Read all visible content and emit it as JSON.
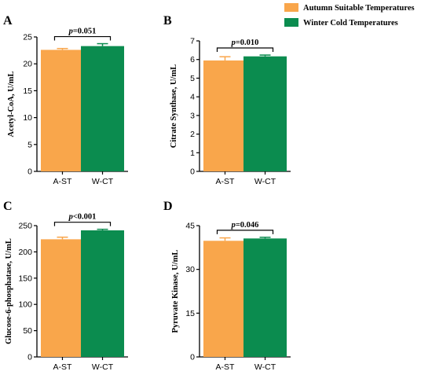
{
  "legend": {
    "items": [
      {
        "label": "Autumn Suitable Temperatures",
        "color": "#F9A64B"
      },
      {
        "label": "Winter Cold Temperatures",
        "color": "#0B8C4F"
      }
    ]
  },
  "chart_data": [
    {
      "panel": "A",
      "type": "bar",
      "categories": [
        "A-ST",
        "W-CT"
      ],
      "values": [
        22.6,
        23.3
      ],
      "errors": [
        0.25,
        0.45
      ],
      "ylabel": "Acetyl-CoA, U/mL",
      "ylim": [
        0,
        25
      ],
      "yticks": [
        0,
        5,
        10,
        15,
        20,
        25
      ],
      "significance": "p=0.051",
      "colors": [
        "#F9A64B",
        "#0B8C4F"
      ]
    },
    {
      "panel": "B",
      "type": "bar",
      "categories": [
        "A-ST",
        "W-CT"
      ],
      "values": [
        5.95,
        6.17
      ],
      "errors": [
        0.2,
        0.07
      ],
      "ylabel": "Citrate Synthase, U/mL",
      "ylim": [
        0,
        7
      ],
      "yticks": [
        0,
        1,
        2,
        3,
        4,
        5,
        6,
        7
      ],
      "significance": "p=0.010",
      "colors": [
        "#F9A64B",
        "#0B8C4F"
      ]
    },
    {
      "panel": "C",
      "type": "bar",
      "categories": [
        "A-ST",
        "W-CT"
      ],
      "values": [
        224,
        241
      ],
      "errors": [
        4,
        2
      ],
      "ylabel": "Glucose-6-phosphatase, U/mL",
      "ylim": [
        0,
        250
      ],
      "yticks": [
        0,
        50,
        100,
        150,
        200,
        250
      ],
      "significance": "p<0.001",
      "colors": [
        "#F9A64B",
        "#0B8C4F"
      ]
    },
    {
      "panel": "D",
      "type": "bar",
      "categories": [
        "A-ST",
        "W-CT"
      ],
      "values": [
        39.8,
        40.6
      ],
      "errors": [
        1.0,
        0.4
      ],
      "ylabel": "Pyruvate Kinase, U/mL",
      "ylim": [
        0,
        45
      ],
      "yticks": [
        0,
        15,
        30,
        45
      ],
      "significance": "p=0.046",
      "colors": [
        "#F9A64B",
        "#0B8C4F"
      ]
    }
  ]
}
